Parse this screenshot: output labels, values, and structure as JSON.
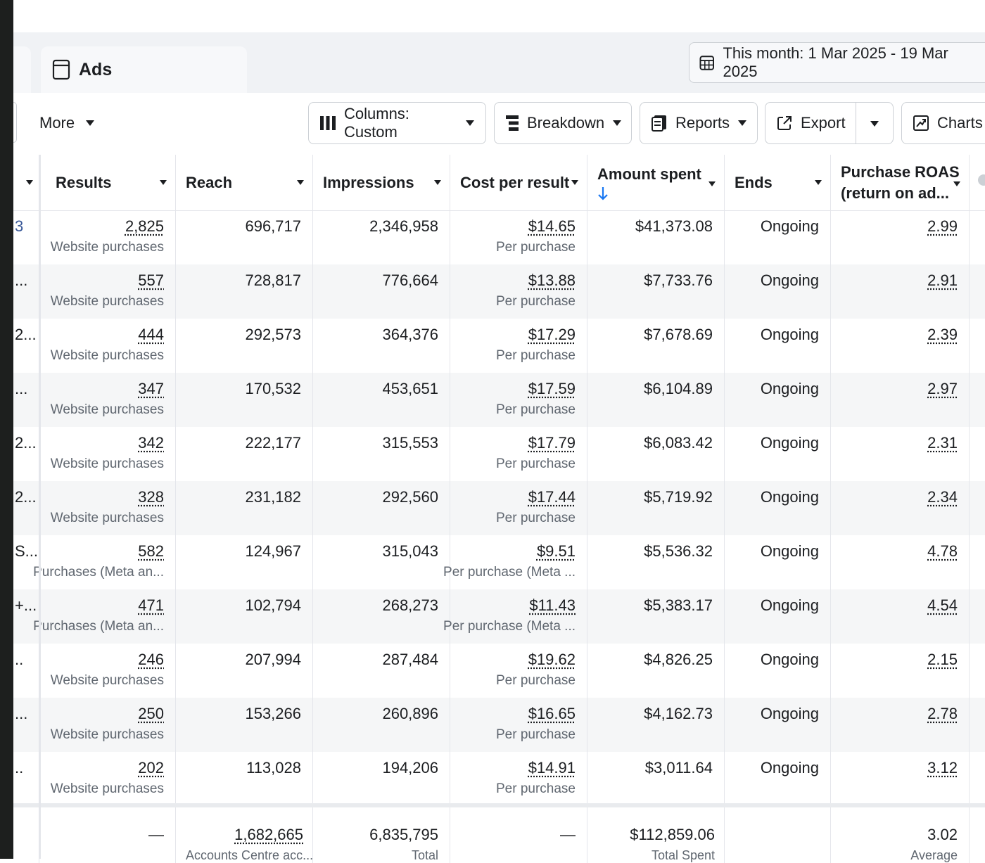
{
  "tabs": {
    "active_label": "Ads"
  },
  "date_range": {
    "label": "This month: 1 Mar 2025 - 19 Mar 2025"
  },
  "toolbar": {
    "more_label": "More",
    "columns_label": "Columns: Custom",
    "breakdown_label": "Breakdown",
    "reports_label": "Reports",
    "export_label": "Export",
    "charts_label": "Charts"
  },
  "columns": {
    "results": "Results",
    "reach": "Reach",
    "impressions": "Impressions",
    "cost_per_result": "Cost per result",
    "amount_spent": "Amount spent",
    "ends": "Ends",
    "roas_line1": "Purchase ROAS",
    "roas_line2": "(return on ad..."
  },
  "rows": [
    {
      "name_frag": "3",
      "results": "2,825",
      "result_type": "Website purchases",
      "reach": "696,717",
      "impressions": "2,346,958",
      "cpr": "$14.65",
      "cpr_type": "Per purchase",
      "spent": "$41,373.08",
      "ends": "Ongoing",
      "roas": "2.99"
    },
    {
      "name_frag": "...",
      "results": "557",
      "result_type": "Website purchases",
      "reach": "728,817",
      "impressions": "776,664",
      "cpr": "$13.88",
      "cpr_type": "Per purchase",
      "spent": "$7,733.76",
      "ends": "Ongoing",
      "roas": "2.91"
    },
    {
      "name_frag": "2...",
      "results": "444",
      "result_type": "Website purchases",
      "reach": "292,573",
      "impressions": "364,376",
      "cpr": "$17.29",
      "cpr_type": "Per purchase",
      "spent": "$7,678.69",
      "ends": "Ongoing",
      "roas": "2.39"
    },
    {
      "name_frag": "...",
      "results": "347",
      "result_type": "Website purchases",
      "reach": "170,532",
      "impressions": "453,651",
      "cpr": "$17.59",
      "cpr_type": "Per purchase",
      "spent": "$6,104.89",
      "ends": "Ongoing",
      "roas": "2.97"
    },
    {
      "name_frag": "2...",
      "results": "342",
      "result_type": "Website purchases",
      "reach": "222,177",
      "impressions": "315,553",
      "cpr": "$17.79",
      "cpr_type": "Per purchase",
      "spent": "$6,083.42",
      "ends": "Ongoing",
      "roas": "2.31"
    },
    {
      "name_frag": "2...",
      "results": "328",
      "result_type": "Website purchases",
      "reach": "231,182",
      "impressions": "292,560",
      "cpr": "$17.44",
      "cpr_type": "Per purchase",
      "spent": "$5,719.92",
      "ends": "Ongoing",
      "roas": "2.34"
    },
    {
      "name_frag": "S...",
      "results": "582",
      "result_type": "Purchases (Meta an...",
      "reach": "124,967",
      "impressions": "315,043",
      "cpr": "$9.51",
      "cpr_type": "Per purchase (Meta ...",
      "spent": "$5,536.32",
      "ends": "Ongoing",
      "roas": "4.78"
    },
    {
      "name_frag": "+...",
      "results": "471",
      "result_type": "Purchases (Meta an...",
      "reach": "102,794",
      "impressions": "268,273",
      "cpr": "$11.43",
      "cpr_type": "Per purchase (Meta ...",
      "spent": "$5,383.17",
      "ends": "Ongoing",
      "roas": "4.54"
    },
    {
      "name_frag": "..",
      "results": "246",
      "result_type": "Website purchases",
      "reach": "207,994",
      "impressions": "287,484",
      "cpr": "$19.62",
      "cpr_type": "Per purchase",
      "spent": "$4,826.25",
      "ends": "Ongoing",
      "roas": "2.15"
    },
    {
      "name_frag": "...",
      "results": "250",
      "result_type": "Website purchases",
      "reach": "153,266",
      "impressions": "260,896",
      "cpr": "$16.65",
      "cpr_type": "Per purchase",
      "spent": "$4,162.73",
      "ends": "Ongoing",
      "roas": "2.78"
    },
    {
      "name_frag": "..",
      "results": "202",
      "result_type": "Website purchases",
      "reach": "113,028",
      "impressions": "194,206",
      "cpr": "$14.91",
      "cpr_type": "Per purchase",
      "spent": "$3,011.64",
      "ends": "Ongoing",
      "roas": "3.12"
    }
  ],
  "totals": {
    "results": "—",
    "reach": "1,682,665",
    "reach_note": "Accounts Centre acc...",
    "impressions": "6,835,795",
    "impressions_note": "Total",
    "cpr": "—",
    "spent": "$112,859.06",
    "spent_note": "Total Spent",
    "roas": "3.02",
    "roas_note": "Average"
  }
}
